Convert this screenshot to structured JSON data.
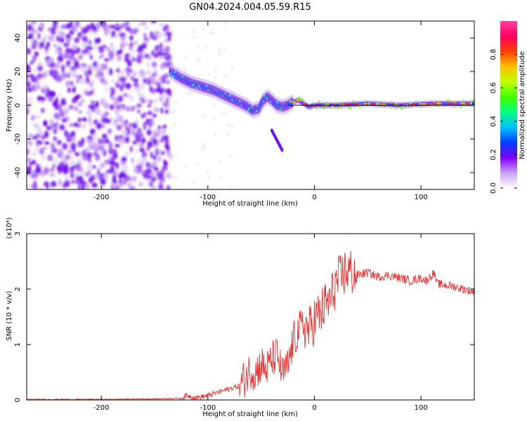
{
  "title": "GN04.2024.004.05.59.R15",
  "chart_data": [
    {
      "type": "heatmap",
      "xlabel": "Height of straight line (km)",
      "ylabel": "Frequency (Hz)",
      "xlim": [
        -270,
        150
      ],
      "ylim": [
        -50,
        50
      ],
      "xticks": [
        -200,
        -100,
        0,
        100
      ],
      "yticks": [
        -40,
        -20,
        0,
        20,
        40
      ],
      "colorbar": {
        "label": "Normalized spectral amplitude",
        "range": [
          0,
          1
        ],
        "ticks": [
          "0.0",
          "0.2",
          "0.4",
          "0.6",
          "0.8"
        ],
        "colors": [
          "#ffffff",
          "#c8a0f0",
          "#8000ff",
          "#0040ff",
          "#00c0ff",
          "#00ff80",
          "#40ff00",
          "#c0ff00",
          "#ffc000",
          "#ff4000",
          "#ff0060",
          "#ff40a0"
        ]
      },
      "ridge": {
        "x": [
          -135,
          -125,
          -115,
          -105,
          -95,
          -85,
          -75,
          -65,
          -58,
          -52,
          -48,
          -44,
          -40,
          -35,
          -30,
          -25,
          -20,
          -15,
          -10,
          -5,
          0,
          20,
          50,
          80,
          110,
          150
        ],
        "y": [
          20,
          16,
          13,
          11,
          9,
          6,
          3,
          0,
          -3,
          -2,
          3,
          5,
          3,
          0,
          -1,
          0,
          2,
          3,
          1,
          -1,
          0,
          0,
          1,
          0,
          1,
          1
        ]
      }
    },
    {
      "type": "line",
      "xlabel": "Height of straight line (km)",
      "ylabel": "SNR (10 * v/v)",
      "y_multiplier": "(x10⁴)",
      "xlim": [
        -270,
        150
      ],
      "ylim": [
        0,
        3
      ],
      "xticks": [
        -200,
        -100,
        0,
        100
      ],
      "yticks": [
        0,
        1,
        2,
        3
      ],
      "series": [
        {
          "color": "#ee3030",
          "x": [
            -270,
            -200,
            -150,
            -125,
            -120,
            -115,
            -110,
            -100,
            -90,
            -80,
            -70,
            -65,
            -60,
            -55,
            -50,
            -45,
            -40,
            -35,
            -30,
            -25,
            -20,
            -15,
            -10,
            -5,
            0,
            5,
            10,
            15,
            20,
            25,
            30,
            35,
            40,
            50,
            60,
            70,
            80,
            90,
            100,
            105,
            110,
            112,
            115,
            120,
            130,
            140,
            150
          ],
          "y": [
            0.01,
            0.01,
            0.02,
            0.03,
            0.08,
            0.06,
            0.04,
            0.08,
            0.14,
            0.2,
            0.26,
            0.4,
            0.55,
            0.5,
            0.65,
            0.55,
            0.72,
            0.8,
            0.45,
            0.6,
            1.05,
            1.25,
            1.35,
            1.25,
            1.45,
            1.55,
            1.7,
            1.8,
            2.1,
            2.2,
            2.35,
            2.3,
            2.25,
            2.3,
            2.22,
            2.25,
            2.2,
            2.15,
            2.2,
            2.15,
            2.25,
            2.3,
            2.1,
            2.08,
            2.05,
            2.0,
            1.95
          ]
        }
      ]
    }
  ]
}
